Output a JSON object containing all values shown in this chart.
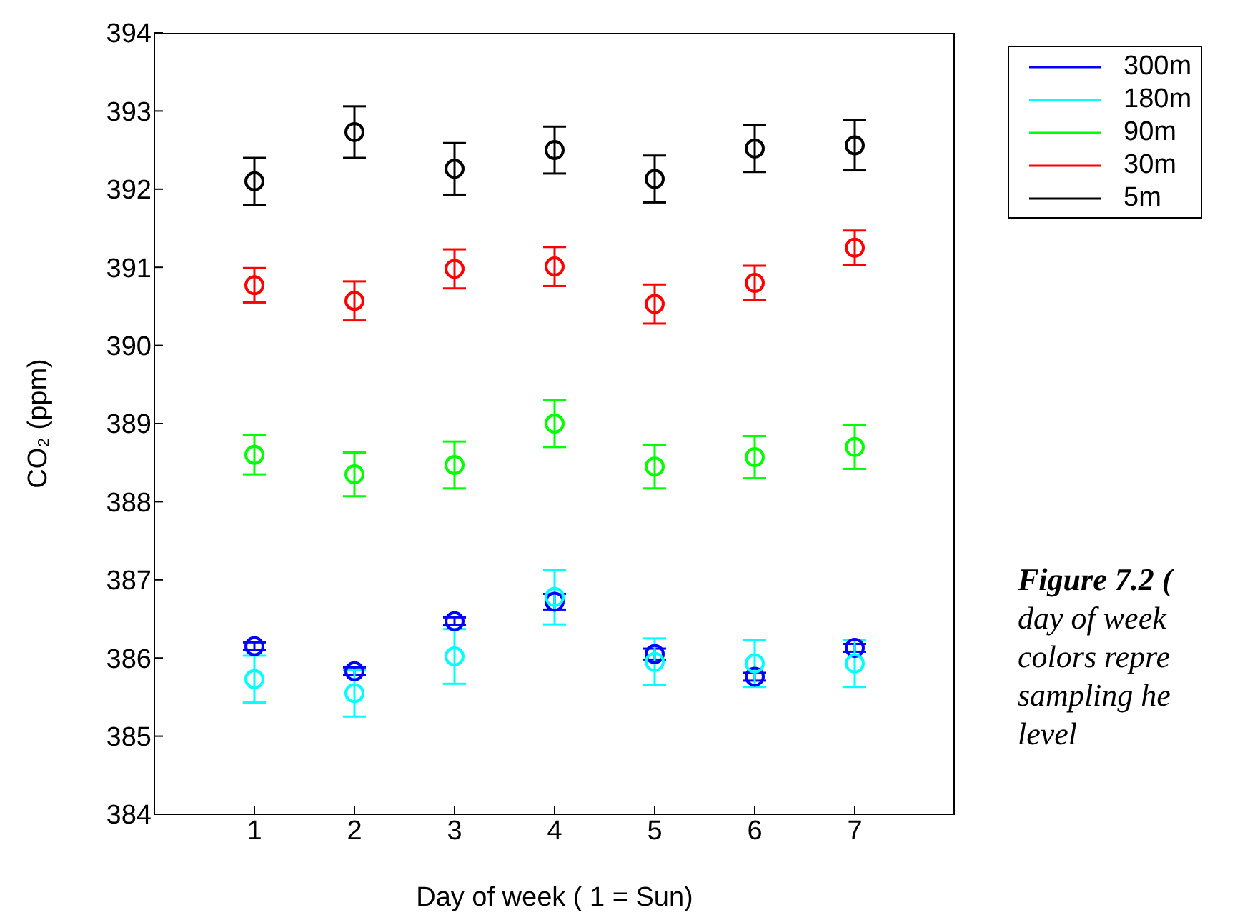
{
  "chart_data": {
    "type": "scatter",
    "xlabel": "Day of week ( 1 = Sun)",
    "ylabel": "CO₂ (ppm)",
    "x": [
      1,
      2,
      3,
      4,
      5,
      6,
      7
    ],
    "xlim": [
      0,
      8
    ],
    "xticks": [
      1,
      2,
      3,
      4,
      5,
      6,
      7
    ],
    "ylim": [
      384,
      394
    ],
    "yticks": [
      384,
      385,
      386,
      387,
      388,
      389,
      390,
      391,
      392,
      393,
      394
    ],
    "marker": "circle",
    "grid": false,
    "legend": "top right",
    "series": [
      {
        "name": "300m",
        "color": "#0000ff",
        "values": [
          386.15,
          385.83,
          386.47,
          386.72,
          386.05,
          385.76,
          386.13
        ],
        "errors": [
          0.05,
          0.05,
          0.05,
          0.1,
          0.07,
          0.05,
          0.05
        ]
      },
      {
        "name": "180m",
        "color": "#00ffff",
        "values": [
          385.73,
          385.55,
          386.02,
          386.78,
          385.95,
          385.93,
          385.93
        ],
        "errors": [
          0.3,
          0.3,
          0.35,
          0.35,
          0.3,
          0.3,
          0.3
        ]
      },
      {
        "name": "90m",
        "color": "#00ff00",
        "values": [
          388.6,
          388.35,
          388.47,
          389.0,
          388.45,
          388.57,
          388.7
        ],
        "errors": [
          0.25,
          0.28,
          0.3,
          0.3,
          0.28,
          0.27,
          0.28
        ]
      },
      {
        "name": "30m",
        "color": "#ff0000",
        "values": [
          390.77,
          390.57,
          390.98,
          391.01,
          390.53,
          390.8,
          391.25
        ],
        "errors": [
          0.22,
          0.25,
          0.25,
          0.25,
          0.25,
          0.22,
          0.22
        ]
      },
      {
        "name": "5m",
        "color": "#000000",
        "values": [
          392.1,
          392.73,
          392.26,
          392.5,
          392.13,
          392.52,
          392.56
        ],
        "errors": [
          0.3,
          0.33,
          0.33,
          0.3,
          0.3,
          0.3,
          0.32
        ]
      }
    ],
    "annotations": [
      "Figure 7.2 (",
      "day of week",
      "colors repre",
      "sampling he",
      "level"
    ]
  }
}
